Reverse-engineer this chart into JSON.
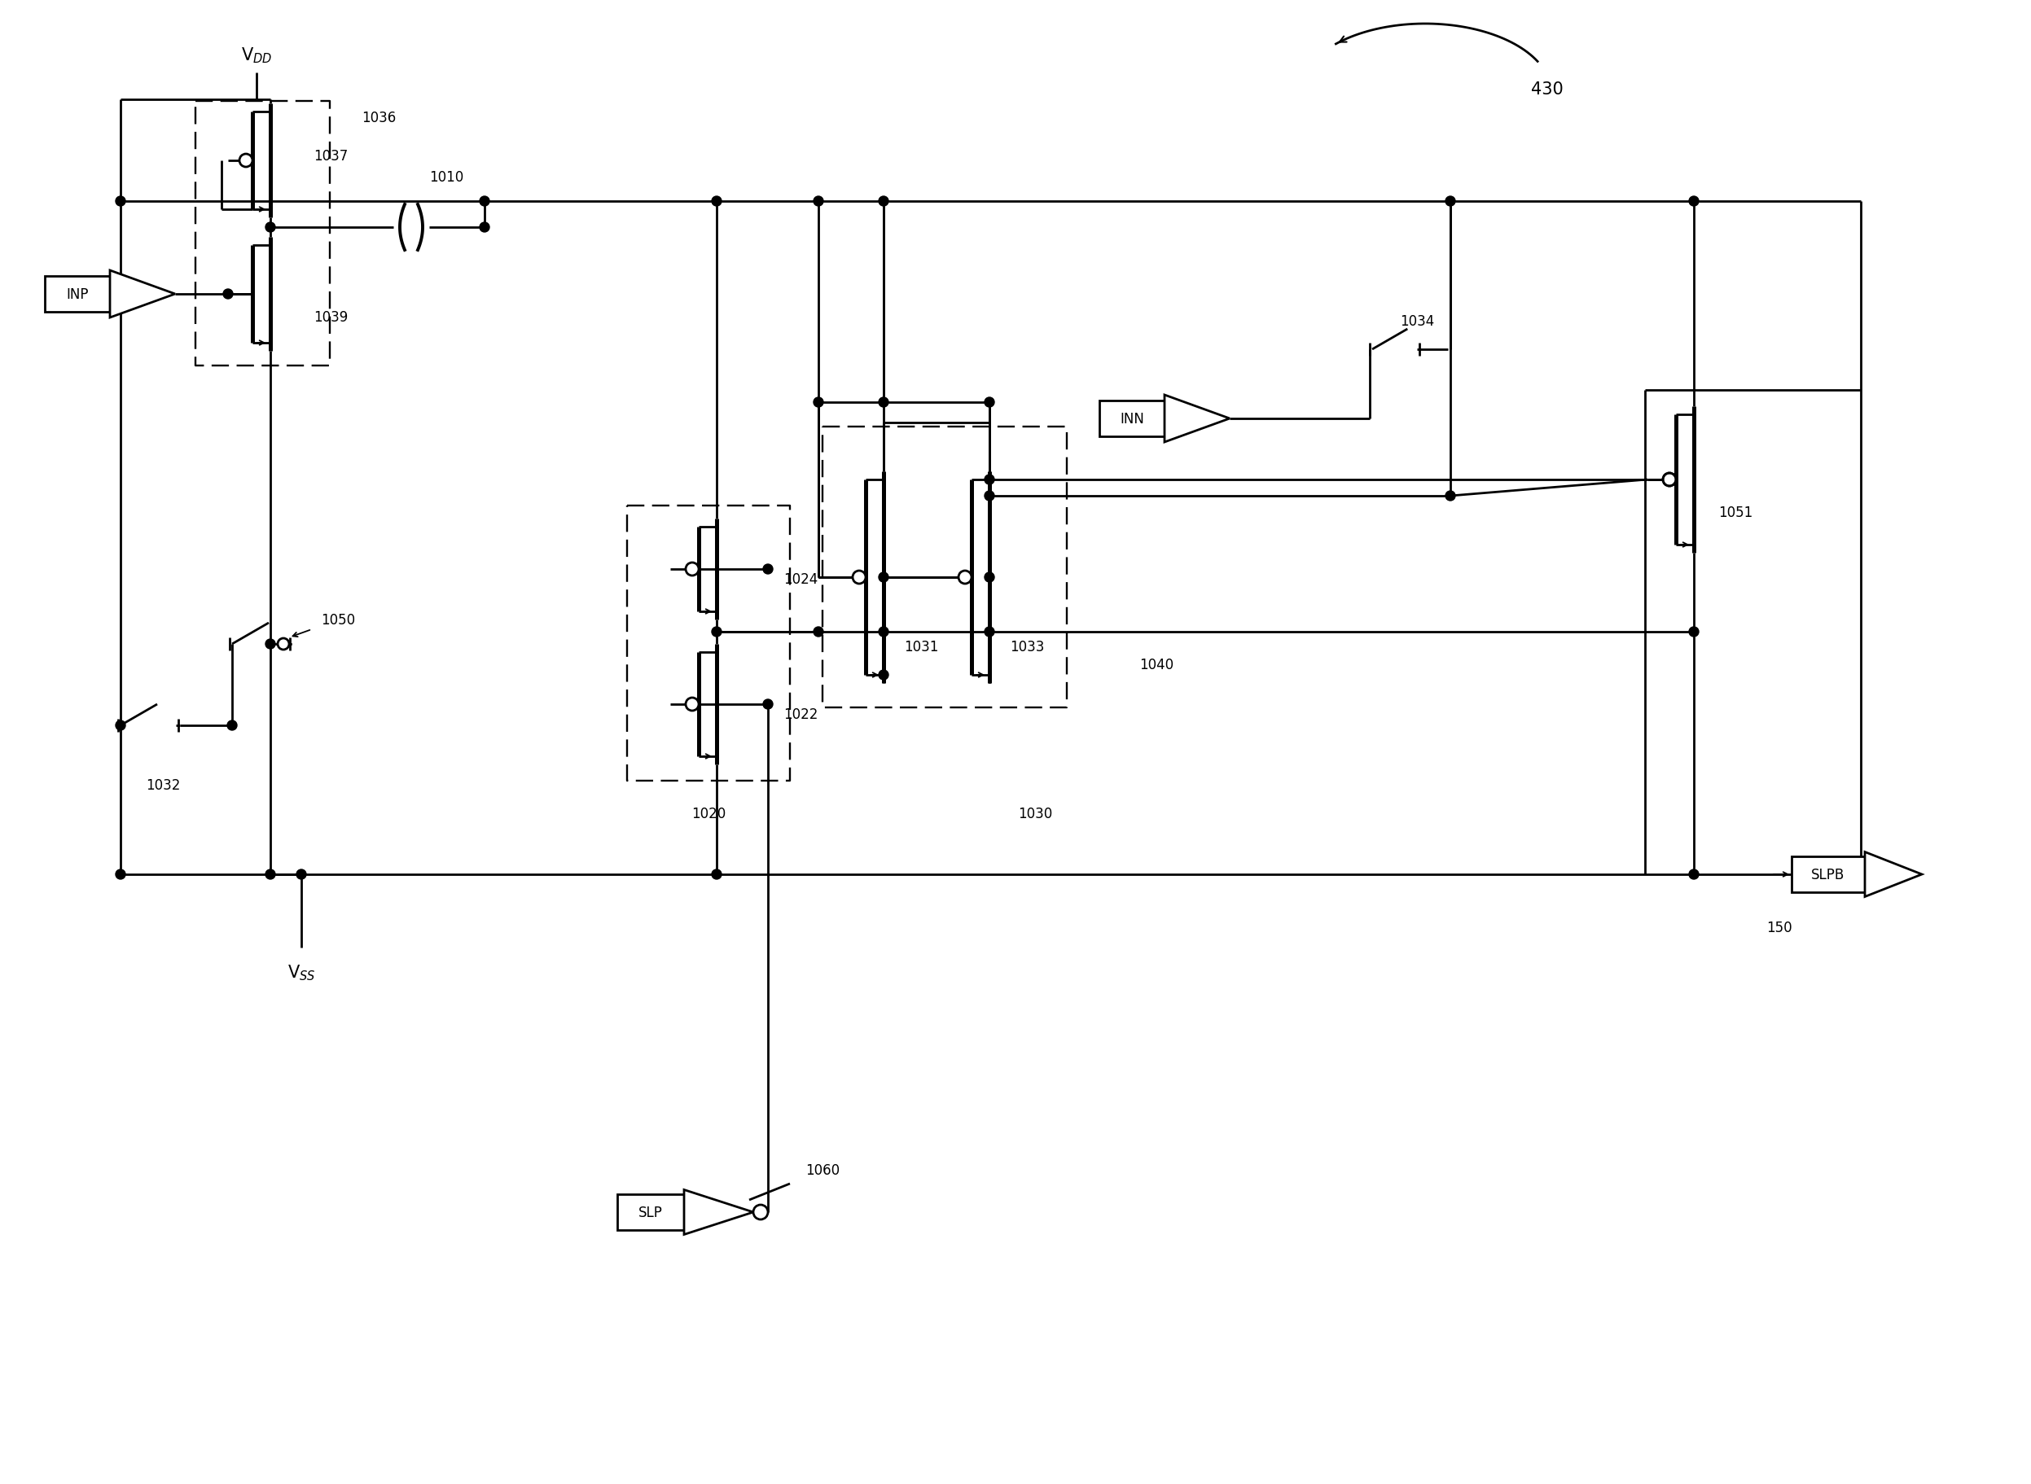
{
  "title": "430",
  "labels": {
    "VDD": "V$_{DD}$",
    "VSS": "V$_{SS}$",
    "INP": "INP",
    "INN": "INN",
    "SLP": "SLP",
    "SLPB": "SLPB",
    "n1036": "1036",
    "n1037": "1037",
    "n1039": "1039",
    "n1010": "1010",
    "n1020": "1020",
    "n1022": "1022",
    "n1024": "1024",
    "n1030": "1030",
    "n1031": "1031",
    "n1032": "1032",
    "n1033": "1033",
    "n1034": "1034",
    "n1040": "1040",
    "n1050": "1050",
    "n1051": "1051",
    "n1060": "1060",
    "n150": "150",
    "n430": "430"
  },
  "fig_width": 24.94,
  "fig_height": 18.24
}
